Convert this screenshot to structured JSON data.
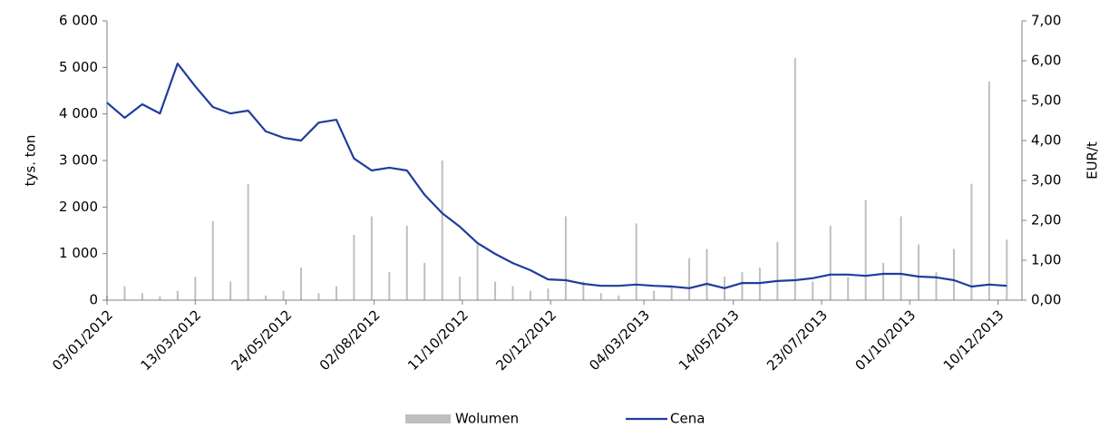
{
  "chart_data": {
    "type": "bar-line",
    "x": [
      "03/01/2012",
      "17/01/2012",
      "31/01/2012",
      "14/02/2012",
      "28/02/2012",
      "13/03/2012",
      "27/03/2012",
      "10/04/2012",
      "24/04/2012",
      "08/05/2012",
      "22/05/2012",
      "05/06/2012",
      "19/06/2012",
      "03/07/2012",
      "17/07/2012",
      "31/07/2012",
      "14/08/2012",
      "28/08/2012",
      "11/09/2012",
      "25/09/2012",
      "09/10/2012",
      "23/10/2012",
      "06/11/2012",
      "20/11/2012",
      "04/12/2012",
      "18/12/2012",
      "01/01/2013",
      "15/01/2013",
      "29/01/2013",
      "12/02/2013",
      "26/02/2013",
      "12/03/2013",
      "26/03/2013",
      "09/04/2013",
      "23/04/2013",
      "07/05/2013",
      "21/05/2013",
      "04/06/2013",
      "18/06/2013",
      "02/07/2013",
      "16/07/2013",
      "30/07/2013",
      "13/08/2013",
      "27/08/2013",
      "10/09/2013",
      "24/09/2013",
      "08/10/2013",
      "22/10/2013",
      "05/11/2013",
      "19/11/2013",
      "03/12/2013",
      "17/12/2013"
    ],
    "series": [
      {
        "name": "Wolumen",
        "color": "#bfbfbf",
        "axis": "y",
        "values": [
          100,
          300,
          150,
          80,
          200,
          500,
          1700,
          400,
          2500,
          100,
          200,
          700,
          150,
          300,
          1400,
          1800,
          600,
          1600,
          800,
          3000,
          500,
          1200,
          400,
          300,
          200,
          250,
          1800,
          400,
          150,
          100,
          1650,
          200,
          300,
          900,
          1100,
          500,
          600,
          700,
          1250,
          5200,
          400,
          1600,
          500,
          2150,
          800,
          1800,
          1200,
          600,
          1100,
          2500,
          4700,
          1300
        ]
      },
      {
        "name": "Cena",
        "color": "#1f3d9c",
        "axis": "y2",
        "values": [
          4.95,
          4.57,
          4.91,
          4.68,
          5.93,
          5.36,
          4.84,
          4.68,
          4.75,
          4.23,
          4.07,
          4.0,
          4.45,
          4.52,
          3.55,
          3.25,
          3.32,
          3.25,
          2.64,
          2.18,
          1.84,
          1.43,
          1.16,
          0.93,
          0.75,
          0.52,
          0.5,
          0.41,
          0.36,
          0.36,
          0.39,
          0.36,
          0.34,
          0.3,
          0.41,
          0.3,
          0.43,
          0.43,
          0.48,
          0.5,
          0.55,
          0.64,
          0.64,
          0.61,
          0.66,
          0.66,
          0.59,
          0.57,
          0.5,
          0.34,
          0.39,
          0.36
        ]
      }
    ],
    "xlim": [
      "03/01/2012",
      "29/12/2013"
    ],
    "xticks": [
      "03/01/2012",
      "13/03/2012",
      "24/05/2012",
      "02/08/2012",
      "11/10/2012",
      "20/12/2012",
      "04/03/2013",
      "14/05/2013",
      "23/07/2013",
      "01/10/2013",
      "10/12/2013"
    ],
    "ylabel": "tys. ton",
    "ylim": [
      0,
      6000
    ],
    "yticks": [
      0,
      {
        "value": 1000,
        "label": "1 000"
      },
      {
        "value": 2000,
        "label": "2 000"
      },
      {
        "value": 3000,
        "label": "3 000"
      },
      {
        "value": 4000,
        "label": "4 000"
      },
      {
        "value": 5000,
        "label": "5 000"
      },
      {
        "value": 6000,
        "label": "6 000"
      }
    ],
    "y2label": "EUR/t",
    "y2lim": [
      0,
      7
    ],
    "y2ticks": [
      {
        "value": 0,
        "label": "0,00"
      },
      {
        "value": 1,
        "label": "1,00"
      },
      {
        "value": 2,
        "label": "2,00"
      },
      {
        "value": 3,
        "label": "3,00"
      },
      {
        "value": 4,
        "label": "4,00"
      },
      {
        "value": 5,
        "label": "5,00"
      },
      {
        "value": 6,
        "label": "6,00"
      },
      {
        "value": 7,
        "label": "7,00"
      }
    ],
    "legend": "bottom"
  }
}
